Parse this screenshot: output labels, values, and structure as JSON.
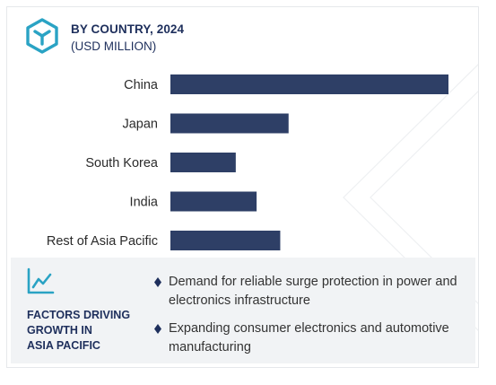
{
  "header": {
    "title": "BY COUNTRY, 2024",
    "subtitle": "(USD MILLION)",
    "logo_icon": "hexagon-cube-icon"
  },
  "colors": {
    "bar": "#2e3f66",
    "title": "#1e2f5c",
    "accent_icon": "#2aa3c4",
    "panel_bg": "#f1f3f5"
  },
  "chart_data": {
    "type": "bar",
    "orientation": "horizontal",
    "title": "BY COUNTRY, 2024",
    "subtitle": "(USD MILLION)",
    "categories": [
      "China",
      "Japan",
      "South Korea",
      "India",
      "Rest of Asia Pacific"
    ],
    "values": [
      100,
      42.5,
      23.5,
      31,
      39.5
    ],
    "xlim": [
      0,
      100
    ],
    "xlabel": "",
    "ylabel": "",
    "grid": false,
    "legend": "none"
  },
  "factors": {
    "icon": "line-chart-icon",
    "title_lines": [
      "FACTORS DRIVING",
      "GROWTH IN",
      "ASIA PACIFIC"
    ],
    "bullet_icon": "diamond-icon",
    "items": [
      "Demand for reliable surge protection in power and electronics infrastructure",
      "Expanding consumer electronics and automotive manufacturing"
    ]
  }
}
